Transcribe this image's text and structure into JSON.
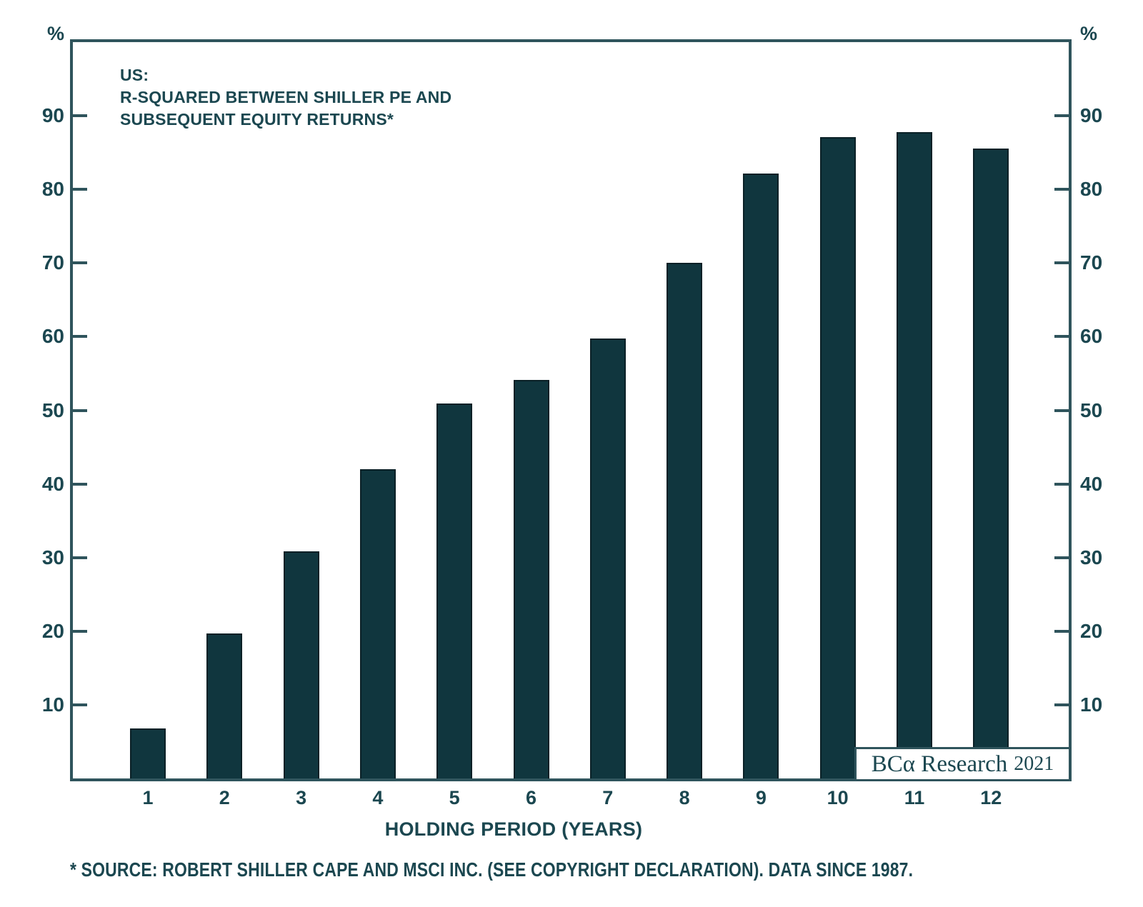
{
  "colors": {
    "bar": "#10363e",
    "bar_border": "#0a2026",
    "axis": "#2f545c",
    "text": "#1b4750"
  },
  "chart_data": {
    "type": "bar",
    "title_lines": [
      "US:",
      "R-SQUARED BETWEEN SHILLER PE AND",
      "SUBSEQUENT EQUITY RETURNS*"
    ],
    "categories": [
      "1",
      "2",
      "3",
      "4",
      "5",
      "6",
      "7",
      "8",
      "9",
      "10",
      "11",
      "12"
    ],
    "values": [
      6.8,
      19.7,
      30.8,
      42.0,
      50.9,
      54.1,
      59.7,
      70.0,
      82.2,
      87.1,
      87.8,
      85.5
    ],
    "xlabel": "HOLDING PERIOD (YEARS)",
    "y_axis_unit_left": "%",
    "y_axis_unit_right": "%",
    "yticks": [
      10,
      20,
      30,
      40,
      50,
      60,
      70,
      80,
      90
    ],
    "ylim": [
      0,
      100
    ],
    "grid": false,
    "legend": false
  },
  "watermark": {
    "logo_text": "BCα Research",
    "year": "2021"
  },
  "footnote": "* SOURCE: ROBERT SHILLER CAPE AND MSCI INC. (SEE COPYRIGHT DECLARATION). DATA SINCE 1987."
}
